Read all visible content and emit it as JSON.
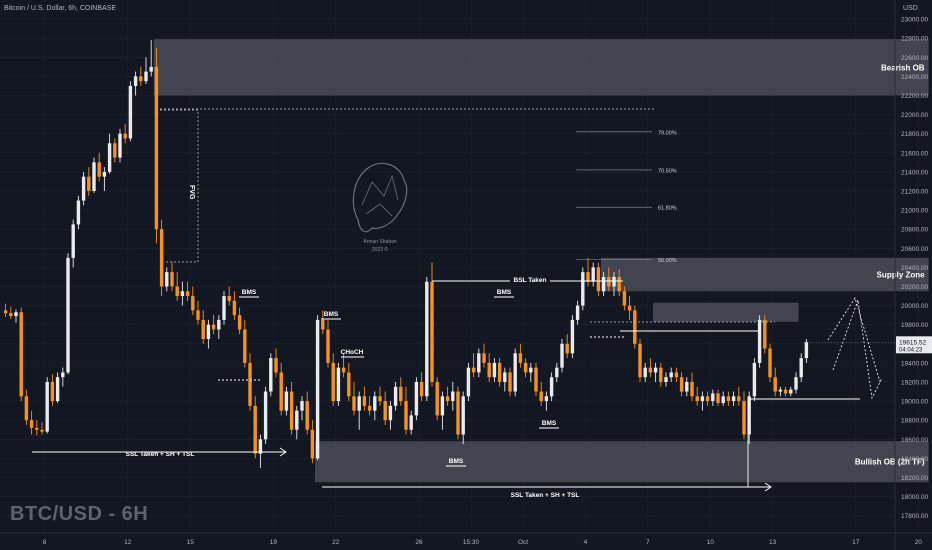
{
  "header": {
    "symbol_line": "Bitcoin / U.S. Dollar, 6h, COINBASE",
    "currency": "USD"
  },
  "watermark": "BTC/USD - 6H",
  "logo": {
    "name": "Arman Shaban",
    "year": "2022 ©"
  },
  "colors": {
    "background": "#131722",
    "bull": "#e8eaed",
    "bear": "#f7931a",
    "zone": "#4b4e57",
    "grid": "#1e222d",
    "axis_text": "#b2b5be"
  },
  "price_tag": {
    "price": "19615.52",
    "countdown": "04:04:23"
  },
  "chart_data": {
    "type": "candlestick",
    "title": "Bitcoin / U.S. Dollar, 6h, COINBASE",
    "y_axis": {
      "unit": "USD",
      "ylim": [
        17650,
        23200
      ],
      "ticks": [
        17800,
        18000,
        18200,
        18400,
        18600,
        18800,
        19000,
        19200,
        19400,
        19600,
        19800,
        20000,
        20200,
        20400,
        20600,
        20800,
        21000,
        21200,
        21400,
        21600,
        21800,
        22000,
        22200,
        22400,
        22600,
        22800,
        23000
      ],
      "tick_labels": [
        "17800.00",
        "18000.00",
        "18200.00",
        "18400.00",
        "18600.00",
        "18800.00",
        "19000.00",
        "19200.00",
        "19400.00",
        "19600.00",
        "19800.00",
        "20000.00",
        "20200.00",
        "20400.00",
        "20600.00",
        "20800.00",
        "21000.00",
        "21200.00",
        "21400.00",
        "21600.00",
        "21800.00",
        "22000.00",
        "22200.00",
        "22400.00",
        "22600.00",
        "22800.00",
        "23000.00"
      ]
    },
    "x_axis": {
      "ticks": [
        {
          "label": "8",
          "bar": 8
        },
        {
          "label": "12",
          "bar": 24
        },
        {
          "label": "15",
          "bar": 36
        },
        {
          "label": "19",
          "bar": 52
        },
        {
          "label": "22",
          "bar": 64
        },
        {
          "label": "26",
          "bar": 80
        },
        {
          "label": "15:30",
          "bar": 90
        },
        {
          "label": "Oct",
          "bar": 100
        },
        {
          "label": "4",
          "bar": 112
        },
        {
          "label": "7",
          "bar": 124
        },
        {
          "label": "10",
          "bar": 136
        },
        {
          "label": "13",
          "bar": 148
        },
        {
          "label": "17",
          "bar": 164
        },
        {
          "label": "20",
          "bar": 176
        }
      ]
    },
    "candles": [
      {
        "o": 19950,
        "h": 20020,
        "l": 19880,
        "c": 19920
      },
      {
        "o": 19920,
        "h": 19990,
        "l": 19860,
        "c": 19890
      },
      {
        "o": 19890,
        "h": 19960,
        "l": 19820,
        "c": 19930
      },
      {
        "o": 19930,
        "h": 19980,
        "l": 19000,
        "c": 19050
      },
      {
        "o": 19050,
        "h": 19120,
        "l": 18750,
        "c": 18800
      },
      {
        "o": 18800,
        "h": 18900,
        "l": 18650,
        "c": 18720
      },
      {
        "o": 18720,
        "h": 18800,
        "l": 18640,
        "c": 18700
      },
      {
        "o": 18700,
        "h": 18780,
        "l": 18650,
        "c": 18680
      },
      {
        "o": 18680,
        "h": 19250,
        "l": 18660,
        "c": 19200
      },
      {
        "o": 19200,
        "h": 19280,
        "l": 18950,
        "c": 19000
      },
      {
        "o": 19000,
        "h": 19300,
        "l": 18980,
        "c": 19250
      },
      {
        "o": 19250,
        "h": 19350,
        "l": 19150,
        "c": 19300
      },
      {
        "o": 19300,
        "h": 20550,
        "l": 19280,
        "c": 20500
      },
      {
        "o": 20500,
        "h": 20900,
        "l": 20400,
        "c": 20850
      },
      {
        "o": 20850,
        "h": 21150,
        "l": 20800,
        "c": 21100
      },
      {
        "o": 21100,
        "h": 21400,
        "l": 21050,
        "c": 21350
      },
      {
        "o": 21350,
        "h": 21450,
        "l": 21150,
        "c": 21200
      },
      {
        "o": 21200,
        "h": 21550,
        "l": 21180,
        "c": 21500
      },
      {
        "o": 21500,
        "h": 21600,
        "l": 21300,
        "c": 21350
      },
      {
        "o": 21350,
        "h": 21450,
        "l": 21200,
        "c": 21400
      },
      {
        "o": 21400,
        "h": 21800,
        "l": 21380,
        "c": 21700
      },
      {
        "o": 21700,
        "h": 21750,
        "l": 21500,
        "c": 21550
      },
      {
        "o": 21550,
        "h": 21850,
        "l": 21500,
        "c": 21800
      },
      {
        "o": 21800,
        "h": 21900,
        "l": 21700,
        "c": 21750
      },
      {
        "o": 21750,
        "h": 22350,
        "l": 21720,
        "c": 22300
      },
      {
        "o": 22300,
        "h": 22450,
        "l": 22200,
        "c": 22400
      },
      {
        "o": 22400,
        "h": 22500,
        "l": 22300,
        "c": 22350
      },
      {
        "o": 22350,
        "h": 22600,
        "l": 22320,
        "c": 22450
      },
      {
        "o": 22450,
        "h": 22780,
        "l": 22400,
        "c": 22500
      },
      {
        "o": 22500,
        "h": 22700,
        "l": 20650,
        "c": 20800
      },
      {
        "o": 20800,
        "h": 20900,
        "l": 20100,
        "c": 20200
      },
      {
        "o": 20200,
        "h": 20400,
        "l": 20150,
        "c": 20350
      },
      {
        "o": 20350,
        "h": 20450,
        "l": 20150,
        "c": 20200
      },
      {
        "o": 20200,
        "h": 20350,
        "l": 20050,
        "c": 20100
      },
      {
        "o": 20100,
        "h": 20250,
        "l": 20000,
        "c": 20150
      },
      {
        "o": 20150,
        "h": 20250,
        "l": 20050,
        "c": 20100
      },
      {
        "o": 20100,
        "h": 20200,
        "l": 19900,
        "c": 19950
      },
      {
        "o": 19950,
        "h": 20050,
        "l": 19800,
        "c": 19850
      },
      {
        "o": 19850,
        "h": 19950,
        "l": 19600,
        "c": 19650
      },
      {
        "o": 19650,
        "h": 19850,
        "l": 19550,
        "c": 19800
      },
      {
        "o": 19800,
        "h": 19900,
        "l": 19700,
        "c": 19750
      },
      {
        "o": 19750,
        "h": 19900,
        "l": 19650,
        "c": 19850
      },
      {
        "o": 19850,
        "h": 20150,
        "l": 19800,
        "c": 20100
      },
      {
        "o": 20100,
        "h": 20200,
        "l": 20000,
        "c": 20050
      },
      {
        "o": 20050,
        "h": 20150,
        "l": 19850,
        "c": 19900
      },
      {
        "o": 19900,
        "h": 19980,
        "l": 19700,
        "c": 19750
      },
      {
        "o": 19750,
        "h": 19850,
        "l": 19350,
        "c": 19400
      },
      {
        "o": 19400,
        "h": 19500,
        "l": 18900,
        "c": 18950
      },
      {
        "o": 18950,
        "h": 19050,
        "l": 18400,
        "c": 18450
      },
      {
        "o": 18450,
        "h": 18650,
        "l": 18300,
        "c": 18600
      },
      {
        "o": 18600,
        "h": 19150,
        "l": 18550,
        "c": 19100
      },
      {
        "o": 19100,
        "h": 19500,
        "l": 19050,
        "c": 19450
      },
      {
        "o": 19450,
        "h": 19550,
        "l": 19250,
        "c": 19300
      },
      {
        "o": 19300,
        "h": 19400,
        "l": 18850,
        "c": 18900
      },
      {
        "o": 18900,
        "h": 19150,
        "l": 18850,
        "c": 19100
      },
      {
        "o": 19100,
        "h": 19200,
        "l": 18650,
        "c": 18700
      },
      {
        "o": 18700,
        "h": 18950,
        "l": 18600,
        "c": 18900
      },
      {
        "o": 18900,
        "h": 19050,
        "l": 18800,
        "c": 19000
      },
      {
        "o": 19000,
        "h": 19100,
        "l": 18650,
        "c": 18700
      },
      {
        "o": 18700,
        "h": 18800,
        "l": 18350,
        "c": 18400
      },
      {
        "o": 18400,
        "h": 19900,
        "l": 18380,
        "c": 19850
      },
      {
        "o": 19850,
        "h": 19950,
        "l": 19700,
        "c": 19750
      },
      {
        "o": 19750,
        "h": 19850,
        "l": 19350,
        "c": 19400
      },
      {
        "o": 19400,
        "h": 19500,
        "l": 18950,
        "c": 19000
      },
      {
        "o": 19000,
        "h": 19400,
        "l": 18950,
        "c": 19350
      },
      {
        "o": 19350,
        "h": 19500,
        "l": 19250,
        "c": 19300
      },
      {
        "o": 19300,
        "h": 19400,
        "l": 19000,
        "c": 19050
      },
      {
        "o": 19050,
        "h": 19200,
        "l": 18850,
        "c": 18900
      },
      {
        "o": 18900,
        "h": 19100,
        "l": 18700,
        "c": 19050
      },
      {
        "o": 19050,
        "h": 19150,
        "l": 18900,
        "c": 18950
      },
      {
        "o": 18950,
        "h": 19050,
        "l": 18850,
        "c": 18900
      },
      {
        "o": 18900,
        "h": 19100,
        "l": 18800,
        "c": 19050
      },
      {
        "o": 19050,
        "h": 19150,
        "l": 18950,
        "c": 19000
      },
      {
        "o": 19000,
        "h": 19100,
        "l": 18750,
        "c": 18800
      },
      {
        "o": 18800,
        "h": 19000,
        "l": 18700,
        "c": 18950
      },
      {
        "o": 18950,
        "h": 19200,
        "l": 18900,
        "c": 19150
      },
      {
        "o": 19150,
        "h": 19250,
        "l": 18950,
        "c": 19000
      },
      {
        "o": 19000,
        "h": 19150,
        "l": 18650,
        "c": 18700
      },
      {
        "o": 18700,
        "h": 18900,
        "l": 18650,
        "c": 18850
      },
      {
        "o": 18850,
        "h": 19250,
        "l": 18800,
        "c": 19200
      },
      {
        "o": 19200,
        "h": 19300,
        "l": 19000,
        "c": 19050
      },
      {
        "o": 19050,
        "h": 20300,
        "l": 19000,
        "c": 20250
      },
      {
        "o": 20250,
        "h": 20450,
        "l": 19150,
        "c": 19200
      },
      {
        "o": 19200,
        "h": 19250,
        "l": 18800,
        "c": 18850
      },
      {
        "o": 18850,
        "h": 19100,
        "l": 18700,
        "c": 19050
      },
      {
        "o": 19050,
        "h": 19150,
        "l": 18950,
        "c": 19000
      },
      {
        "o": 19000,
        "h": 19200,
        "l": 18900,
        "c": 19100
      },
      {
        "o": 19100,
        "h": 19150,
        "l": 18600,
        "c": 18650
      },
      {
        "o": 18650,
        "h": 19100,
        "l": 18550,
        "c": 19050
      },
      {
        "o": 19050,
        "h": 19400,
        "l": 19000,
        "c": 19350
      },
      {
        "o": 19350,
        "h": 19500,
        "l": 19250,
        "c": 19300
      },
      {
        "o": 19300,
        "h": 19550,
        "l": 19250,
        "c": 19500
      },
      {
        "o": 19500,
        "h": 19600,
        "l": 19350,
        "c": 19400
      },
      {
        "o": 19400,
        "h": 19500,
        "l": 19200,
        "c": 19250
      },
      {
        "o": 19250,
        "h": 19450,
        "l": 19200,
        "c": 19400
      },
      {
        "o": 19400,
        "h": 19450,
        "l": 19150,
        "c": 19200
      },
      {
        "o": 19200,
        "h": 19350,
        "l": 19100,
        "c": 19300
      },
      {
        "o": 19300,
        "h": 19350,
        "l": 19050,
        "c": 19100
      },
      {
        "o": 19100,
        "h": 19550,
        "l": 19050,
        "c": 19500
      },
      {
        "o": 19500,
        "h": 19600,
        "l": 19350,
        "c": 19400
      },
      {
        "o": 19400,
        "h": 19450,
        "l": 19250,
        "c": 19300
      },
      {
        "o": 19300,
        "h": 19400,
        "l": 19200,
        "c": 19350
      },
      {
        "o": 19350,
        "h": 19400,
        "l": 19050,
        "c": 19100
      },
      {
        "o": 19100,
        "h": 19200,
        "l": 18950,
        "c": 19000
      },
      {
        "o": 19000,
        "h": 19100,
        "l": 18900,
        "c": 19050
      },
      {
        "o": 19050,
        "h": 19300,
        "l": 19000,
        "c": 19250
      },
      {
        "o": 19250,
        "h": 19400,
        "l": 19200,
        "c": 19350
      },
      {
        "o": 19350,
        "h": 19650,
        "l": 19300,
        "c": 19600
      },
      {
        "o": 19600,
        "h": 19700,
        "l": 19450,
        "c": 19500
      },
      {
        "o": 19500,
        "h": 19900,
        "l": 19450,
        "c": 19850
      },
      {
        "o": 19850,
        "h": 20050,
        "l": 19800,
        "c": 20000
      },
      {
        "o": 20000,
        "h": 20400,
        "l": 19950,
        "c": 20350
      },
      {
        "o": 20350,
        "h": 20500,
        "l": 20200,
        "c": 20250
      },
      {
        "o": 20250,
        "h": 20450,
        "l": 20200,
        "c": 20400
      },
      {
        "o": 20400,
        "h": 20450,
        "l": 20100,
        "c": 20150
      },
      {
        "o": 20150,
        "h": 20350,
        "l": 20100,
        "c": 20300
      },
      {
        "o": 20300,
        "h": 20400,
        "l": 20150,
        "c": 20200
      },
      {
        "o": 20200,
        "h": 20350,
        "l": 20100,
        "c": 20300
      },
      {
        "o": 20300,
        "h": 20380,
        "l": 20100,
        "c": 20150
      },
      {
        "o": 20150,
        "h": 20200,
        "l": 19950,
        "c": 20000
      },
      {
        "o": 20000,
        "h": 20100,
        "l": 19850,
        "c": 19950
      },
      {
        "o": 19950,
        "h": 20000,
        "l": 19550,
        "c": 19600
      },
      {
        "o": 19600,
        "h": 19650,
        "l": 19200,
        "c": 19250
      },
      {
        "o": 19250,
        "h": 19400,
        "l": 19200,
        "c": 19350
      },
      {
        "o": 19350,
        "h": 19450,
        "l": 19250,
        "c": 19300
      },
      {
        "o": 19300,
        "h": 19400,
        "l": 19200,
        "c": 19350
      },
      {
        "o": 19350,
        "h": 19400,
        "l": 19150,
        "c": 19200
      },
      {
        "o": 19200,
        "h": 19300,
        "l": 19150,
        "c": 19250
      },
      {
        "o": 19250,
        "h": 19350,
        "l": 19200,
        "c": 19300
      },
      {
        "o": 19300,
        "h": 19350,
        "l": 19200,
        "c": 19250
      },
      {
        "o": 19250,
        "h": 19300,
        "l": 19050,
        "c": 19100
      },
      {
        "o": 19100,
        "h": 19250,
        "l": 19050,
        "c": 19200
      },
      {
        "o": 19200,
        "h": 19300,
        "l": 19000,
        "c": 19050
      },
      {
        "o": 19050,
        "h": 19150,
        "l": 18950,
        "c": 19000
      },
      {
        "o": 19000,
        "h": 19100,
        "l": 18900,
        "c": 19050
      },
      {
        "o": 19050,
        "h": 19100,
        "l": 18950,
        "c": 19000
      },
      {
        "o": 19000,
        "h": 19120,
        "l": 18950,
        "c": 19080
      },
      {
        "o": 19080,
        "h": 19120,
        "l": 18950,
        "c": 18980
      },
      {
        "o": 18980,
        "h": 19100,
        "l": 18950,
        "c": 19050
      },
      {
        "o": 19050,
        "h": 19100,
        "l": 18950,
        "c": 19000
      },
      {
        "o": 19000,
        "h": 19100,
        "l": 18950,
        "c": 19050
      },
      {
        "o": 19050,
        "h": 19150,
        "l": 18950,
        "c": 19000
      },
      {
        "o": 19000,
        "h": 19100,
        "l": 18600,
        "c": 18650
      },
      {
        "o": 18650,
        "h": 19100,
        "l": 18550,
        "c": 19050
      },
      {
        "o": 19050,
        "h": 19450,
        "l": 19000,
        "c": 19400
      },
      {
        "o": 19400,
        "h": 19900,
        "l": 19350,
        "c": 19850
      },
      {
        "o": 19850,
        "h": 19900,
        "l": 19500,
        "c": 19550
      },
      {
        "o": 19550,
        "h": 19600,
        "l": 19200,
        "c": 19250
      },
      {
        "o": 19250,
        "h": 19350,
        "l": 19050,
        "c": 19100
      },
      {
        "o": 19100,
        "h": 19150,
        "l": 19050,
        "c": 19120
      },
      {
        "o": 19120,
        "h": 19150,
        "l": 19050,
        "c": 19080
      },
      {
        "o": 19080,
        "h": 19150,
        "l": 19050,
        "c": 19120
      },
      {
        "o": 19120,
        "h": 19300,
        "l": 19080,
        "c": 19250
      },
      {
        "o": 19250,
        "h": 19500,
        "l": 19200,
        "c": 19450
      },
      {
        "o": 19450,
        "h": 19650,
        "l": 19400,
        "c": 19615.52
      }
    ],
    "zones": [
      {
        "label": "Bearish OB",
        "x0": 29,
        "x1": 178,
        "y0": 22200,
        "y1": 22790
      },
      {
        "label": "Supply Zone",
        "x0": 115,
        "x1": 178,
        "y0": 20150,
        "y1": 20500
      },
      {
        "label": "",
        "x0": 125,
        "x1": 153,
        "y0": 19830,
        "y1": 20030
      },
      {
        "label": "Bullish OB (2h TF)",
        "x0": 60,
        "x1": 178,
        "y0": 18150,
        "y1": 18580
      }
    ],
    "fib_levels": [
      {
        "label": "79.00%",
        "price": 21820
      },
      {
        "label": "70.50%",
        "price": 21420
      },
      {
        "label": "61.80%",
        "price": 21030
      },
      {
        "label": "50.00%",
        "price": 20480
      }
    ],
    "annotations": {
      "fvg": "FVG",
      "bms": [
        "BMS",
        "BMS",
        "BMS",
        "BMS",
        "BMS"
      ],
      "choch": "CHoCH",
      "bsl_taken": "BSL Taken",
      "ssl_taken_1": "SSL Taken + SH + TSL",
      "ssl_taken_2": "SSL Taken + SH + TSL"
    }
  }
}
